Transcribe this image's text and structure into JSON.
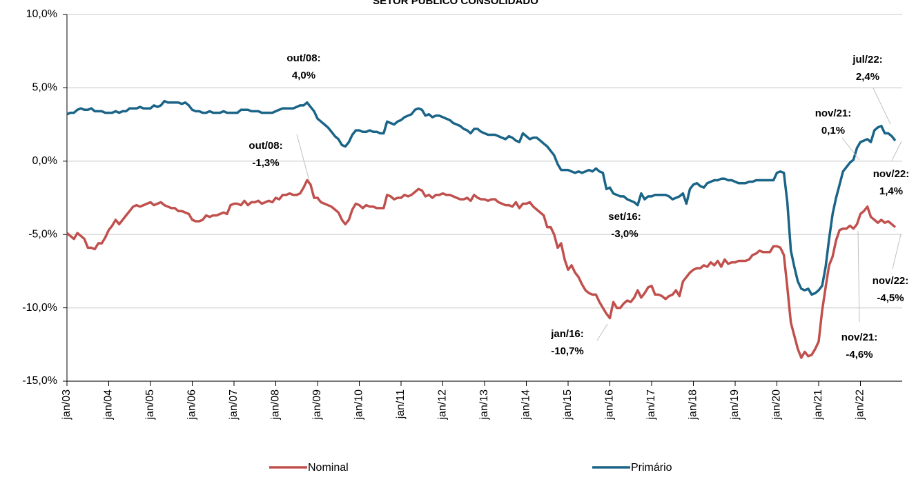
{
  "chart_data": {
    "type": "line",
    "title": "SETOR PÚBLICO CONSOLIDADO",
    "categories": [
      "jan/03",
      null,
      null,
      null,
      null,
      null,
      null,
      null,
      null,
      null,
      null,
      null,
      "jan/04",
      null,
      null,
      null,
      null,
      null,
      null,
      null,
      null,
      null,
      null,
      null,
      "jan/05",
      null,
      null,
      null,
      null,
      null,
      null,
      null,
      null,
      null,
      null,
      null,
      "jan/06",
      null,
      null,
      null,
      null,
      null,
      null,
      null,
      null,
      null,
      null,
      null,
      "jan/07",
      null,
      null,
      null,
      null,
      null,
      null,
      null,
      null,
      null,
      null,
      null,
      "jan/08",
      null,
      null,
      null,
      null,
      null,
      null,
      null,
      null,
      null,
      null,
      null,
      "jan/09",
      null,
      null,
      null,
      null,
      null,
      null,
      null,
      null,
      null,
      null,
      null,
      "jan/10",
      null,
      null,
      null,
      null,
      null,
      null,
      null,
      null,
      null,
      null,
      null,
      "jan/11",
      null,
      null,
      null,
      null,
      null,
      null,
      null,
      null,
      null,
      null,
      null,
      "jan/12",
      null,
      null,
      null,
      null,
      null,
      null,
      null,
      null,
      null,
      null,
      null,
      "jan/13",
      null,
      null,
      null,
      null,
      null,
      null,
      null,
      null,
      null,
      null,
      null,
      "jan/14",
      null,
      null,
      null,
      null,
      null,
      null,
      null,
      null,
      null,
      null,
      null,
      "jan/15",
      null,
      null,
      null,
      null,
      null,
      null,
      null,
      null,
      null,
      null,
      null,
      "jan/16",
      null,
      null,
      null,
      null,
      null,
      null,
      null,
      null,
      null,
      null,
      null,
      "jan/17",
      null,
      null,
      null,
      null,
      null,
      null,
      null,
      null,
      null,
      null,
      null,
      "jan/18",
      null,
      null,
      null,
      null,
      null,
      null,
      null,
      null,
      null,
      null,
      null,
      "jan/19",
      null,
      null,
      null,
      null,
      null,
      null,
      null,
      null,
      null,
      null,
      null,
      "jan/20",
      null,
      null,
      null,
      null,
      null,
      null,
      null,
      null,
      null,
      null,
      null,
      "jan/21",
      null,
      null,
      null,
      null,
      null,
      null,
      null,
      null,
      null,
      null,
      null,
      "jan/22",
      null,
      null,
      null,
      null,
      null,
      null,
      null,
      null,
      null,
      null
    ],
    "series": [
      {
        "name": "Nominal",
        "color": "#c0504d",
        "values": [
          -4.9,
          -5.1,
          -5.3,
          -4.9,
          -5.1,
          -5.3,
          -5.9,
          -5.9,
          -6.0,
          -5.6,
          -5.6,
          -5.2,
          -4.7,
          -4.4,
          -4.0,
          -4.3,
          -4.0,
          -3.7,
          -3.4,
          -3.1,
          -3.0,
          -3.1,
          -3.0,
          -2.9,
          -2.8,
          -3.0,
          -2.9,
          -2.8,
          -3.0,
          -3.1,
          -3.2,
          -3.2,
          -3.4,
          -3.4,
          -3.5,
          -3.6,
          -4.0,
          -4.1,
          -4.1,
          -4.0,
          -3.7,
          -3.8,
          -3.7,
          -3.7,
          -3.6,
          -3.5,
          -3.6,
          -3.0,
          -2.9,
          -2.9,
          -3.0,
          -2.7,
          -3.0,
          -2.8,
          -2.8,
          -2.7,
          -2.9,
          -2.8,
          -2.7,
          -2.8,
          -2.5,
          -2.6,
          -2.3,
          -2.3,
          -2.2,
          -2.3,
          -2.3,
          -2.2,
          -1.8,
          -1.3,
          -1.6,
          -2.5,
          -2.5,
          -2.8,
          -2.9,
          -3.0,
          -3.1,
          -3.3,
          -3.5,
          -4.0,
          -4.3,
          -4.0,
          -3.3,
          -2.9,
          -3.0,
          -3.2,
          -3.0,
          -3.1,
          -3.1,
          -3.2,
          -3.2,
          -3.2,
          -2.3,
          -2.4,
          -2.6,
          -2.5,
          -2.5,
          -2.3,
          -2.4,
          -2.3,
          -2.1,
          -1.9,
          -2.0,
          -2.4,
          -2.3,
          -2.5,
          -2.3,
          -2.3,
          -2.2,
          -2.3,
          -2.3,
          -2.4,
          -2.5,
          -2.6,
          -2.6,
          -2.5,
          -2.7,
          -2.3,
          -2.5,
          -2.6,
          -2.6,
          -2.7,
          -2.6,
          -2.6,
          -2.8,
          -2.9,
          -3.0,
          -3.0,
          -3.1,
          -2.8,
          -3.2,
          -2.9,
          -2.9,
          -2.8,
          -3.1,
          -3.3,
          -3.5,
          -3.7,
          -4.5,
          -4.5,
          -5.0,
          -5.9,
          -5.6,
          -6.7,
          -7.4,
          -7.1,
          -7.6,
          -7.9,
          -8.4,
          -8.8,
          -9.0,
          -9.1,
          -9.1,
          -9.6,
          -10.0,
          -10.4,
          -10.7,
          -9.6,
          -10.0,
          -10.0,
          -9.7,
          -9.5,
          -9.6,
          -9.3,
          -8.8,
          -9.3,
          -9.0,
          -8.6,
          -8.5,
          -9.1,
          -9.1,
          -9.2,
          -9.4,
          -9.2,
          -9.1,
          -8.8,
          -9.2,
          -8.2,
          -7.9,
          -7.6,
          -7.4,
          -7.3,
          -7.3,
          -7.1,
          -7.2,
          -6.9,
          -7.1,
          -6.8,
          -7.2,
          -6.7,
          -7.0,
          -6.9,
          -6.9,
          -6.8,
          -6.8,
          -6.8,
          -6.7,
          -6.4,
          -6.3,
          -6.1,
          -6.2,
          -6.2,
          -6.2,
          -5.8,
          -5.8,
          -5.9,
          -6.4,
          -8.6,
          -11.0,
          -11.9,
          -12.8,
          -13.4,
          -13.0,
          -13.3,
          -13.2,
          -12.8,
          -12.3,
          -10.2,
          -8.6,
          -7.1,
          -6.5,
          -5.4,
          -4.7,
          -4.6,
          -4.6,
          -4.4,
          -4.6,
          -4.3,
          -3.6,
          -3.4,
          -3.1,
          -3.8,
          -4.0,
          -4.2,
          -4.0,
          -4.2,
          -4.1,
          -4.3,
          -4.5
        ]
      },
      {
        "name": "Primário",
        "color": "#1a6487",
        "values": [
          3.2,
          3.3,
          3.3,
          3.5,
          3.6,
          3.5,
          3.5,
          3.6,
          3.4,
          3.4,
          3.4,
          3.3,
          3.3,
          3.3,
          3.4,
          3.3,
          3.4,
          3.4,
          3.6,
          3.6,
          3.6,
          3.7,
          3.6,
          3.6,
          3.6,
          3.8,
          3.7,
          3.8,
          4.1,
          4.0,
          4.0,
          4.0,
          4.0,
          3.9,
          4.0,
          3.8,
          3.5,
          3.4,
          3.4,
          3.3,
          3.3,
          3.4,
          3.3,
          3.3,
          3.3,
          3.4,
          3.3,
          3.3,
          3.3,
          3.3,
          3.5,
          3.5,
          3.5,
          3.4,
          3.4,
          3.4,
          3.3,
          3.3,
          3.3,
          3.3,
          3.4,
          3.5,
          3.6,
          3.6,
          3.6,
          3.6,
          3.7,
          3.8,
          3.8,
          4.0,
          3.7,
          3.4,
          2.9,
          2.7,
          2.5,
          2.3,
          2.0,
          1.7,
          1.5,
          1.1,
          1.0,
          1.3,
          1.8,
          2.1,
          2.1,
          2.0,
          2.0,
          2.1,
          2.0,
          2.0,
          1.9,
          1.9,
          2.7,
          2.6,
          2.5,
          2.7,
          2.8,
          3.0,
          3.1,
          3.2,
          3.5,
          3.6,
          3.5,
          3.1,
          3.2,
          3.0,
          3.1,
          3.1,
          3.0,
          2.9,
          2.8,
          2.6,
          2.5,
          2.4,
          2.2,
          2.1,
          1.9,
          2.2,
          2.2,
          2.0,
          1.9,
          1.8,
          1.8,
          1.8,
          1.7,
          1.6,
          1.5,
          1.7,
          1.6,
          1.4,
          1.3,
          1.9,
          1.7,
          1.5,
          1.6,
          1.6,
          1.4,
          1.2,
          1.0,
          0.7,
          0.4,
          -0.2,
          -0.6,
          -0.6,
          -0.6,
          -0.7,
          -0.8,
          -0.7,
          -0.8,
          -0.7,
          -0.6,
          -0.7,
          -0.5,
          -0.7,
          -0.8,
          -1.9,
          -1.8,
          -2.2,
          -2.3,
          -2.4,
          -2.4,
          -2.6,
          -2.7,
          -2.8,
          -3.0,
          -2.2,
          -2.6,
          -2.4,
          -2.4,
          -2.3,
          -2.3,
          -2.3,
          -2.3,
          -2.4,
          -2.6,
          -2.5,
          -2.4,
          -2.2,
          -2.9,
          -1.9,
          -1.6,
          -1.5,
          -1.7,
          -1.8,
          -1.5,
          -1.4,
          -1.3,
          -1.3,
          -1.2,
          -1.2,
          -1.3,
          -1.3,
          -1.4,
          -1.5,
          -1.5,
          -1.5,
          -1.4,
          -1.4,
          -1.3,
          -1.3,
          -1.3,
          -1.3,
          -1.3,
          -1.3,
          -0.8,
          -0.7,
          -0.8,
          -2.8,
          -6.1,
          -7.2,
          -8.2,
          -8.7,
          -8.8,
          -8.7,
          -9.1,
          -9.0,
          -8.8,
          -8.5,
          -7.2,
          -5.3,
          -3.6,
          -2.5,
          -1.6,
          -0.7,
          -0.4,
          -0.1,
          0.1,
          0.9,
          1.3,
          1.4,
          1.5,
          1.3,
          2.1,
          2.3,
          2.4,
          1.9,
          1.9,
          1.7,
          1.4
        ]
      }
    ],
    "ylim": [
      -15,
      10
    ],
    "yticks": [
      {
        "value": -15,
        "label": "-15,0%"
      },
      {
        "value": -10,
        "label": "-10,0%"
      },
      {
        "value": -5,
        "label": "-5,0%"
      },
      {
        "value": 0,
        "label": "0,0%"
      },
      {
        "value": 5,
        "label": "5,0%"
      },
      {
        "value": 10,
        "label": "10,0%"
      }
    ],
    "grid": true,
    "annotations": [
      [
        "out/08:",
        "4,0%"
      ],
      [
        "out/08:",
        "-1,3%"
      ],
      [
        "jul/22:",
        "2,4%"
      ],
      [
        "nov/21:",
        "0,1%"
      ],
      [
        "nov/22:",
        "1,4%"
      ],
      [
        "set/16:",
        "-3,0%"
      ],
      [
        "jan/16:",
        "-10,7%"
      ],
      [
        "nov/22:",
        "-4,5%"
      ],
      [
        "nov/21:",
        "-4,6%"
      ]
    ]
  }
}
